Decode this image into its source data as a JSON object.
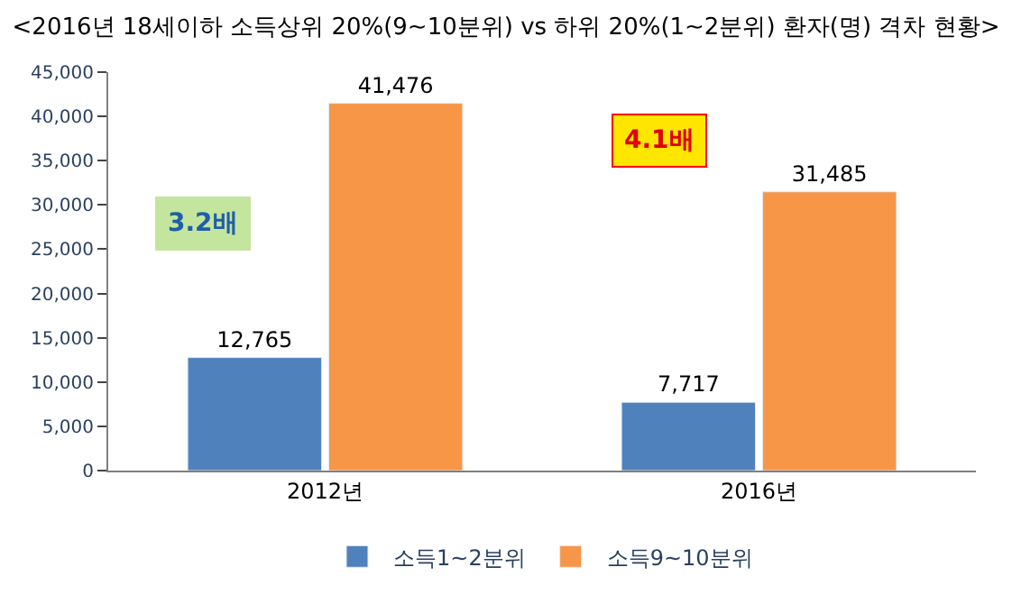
{
  "chart_data": {
    "type": "bar",
    "title": "<2016년 18세이하 소득상위 20%(9~10분위) vs 하위 20%(1~2분위) 환자(명) 격차 현황>",
    "categories": [
      "2012년",
      "2016년"
    ],
    "series": [
      {
        "name": "소득1~2분위",
        "color": "#4f81bd",
        "values": [
          12765,
          7717
        ],
        "value_labels": [
          "12,765",
          "7,717"
        ]
      },
      {
        "name": "소득9~10분위",
        "color": "#f79646",
        "values": [
          41476,
          31485
        ],
        "value_labels": [
          "41,476",
          "31,485"
        ]
      }
    ],
    "ylim": [
      0,
      45000
    ],
    "yticks": [
      {
        "value": 0,
        "label": "0"
      },
      {
        "value": 5000,
        "label": "5,000"
      },
      {
        "value": 10000,
        "label": "10,000"
      },
      {
        "value": 15000,
        "label": "15,000"
      },
      {
        "value": 20000,
        "label": "20,000"
      },
      {
        "value": 25000,
        "label": "25,000"
      },
      {
        "value": 30000,
        "label": "30,000"
      },
      {
        "value": 35000,
        "label": "35,000"
      },
      {
        "value": 40000,
        "label": "40,000"
      },
      {
        "value": 45000,
        "label": "45,000"
      }
    ],
    "legend": "bottom",
    "annotations": [
      "3.2배",
      "4.1배"
    ]
  }
}
